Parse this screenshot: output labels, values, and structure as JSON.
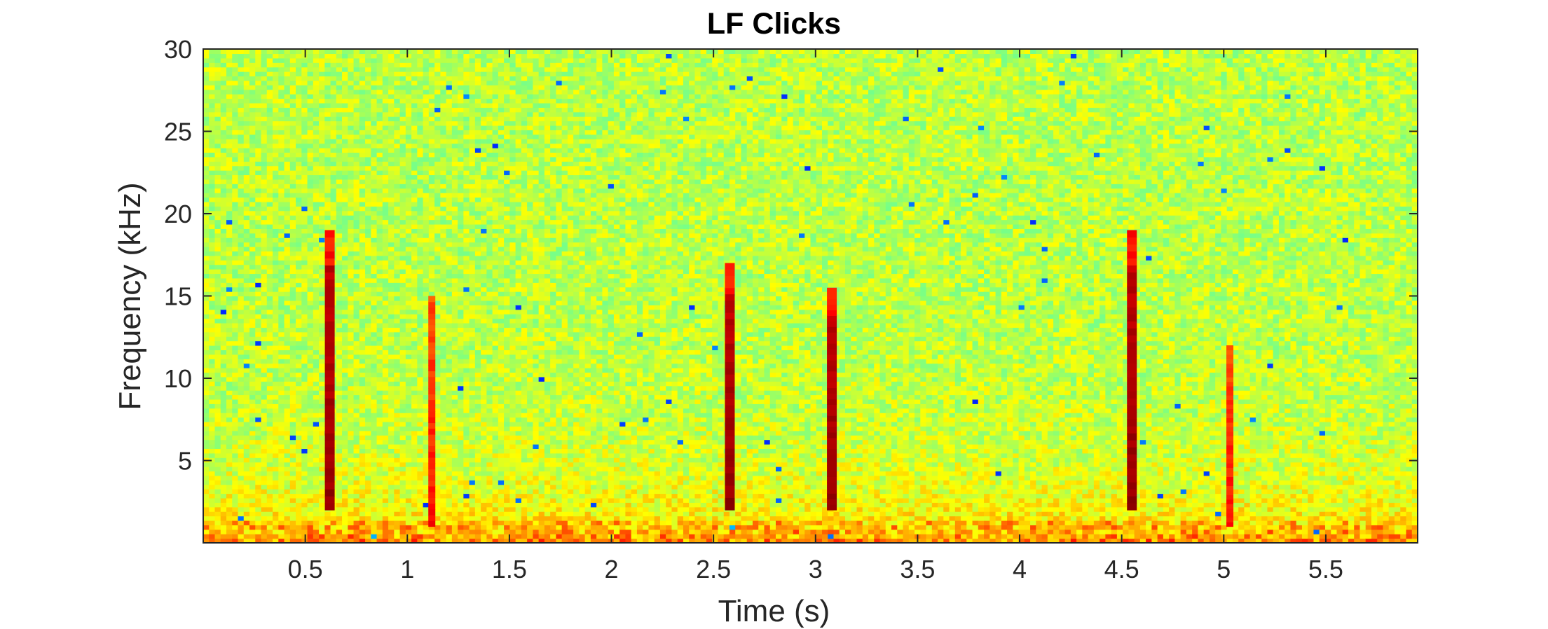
{
  "chart_data": {
    "type": "heatmap",
    "title": "LF Clicks",
    "xlabel": "Time (s)",
    "ylabel": "Frequency (kHz)",
    "xlim": [
      0,
      5.95
    ],
    "ylim": [
      0,
      30
    ],
    "x_ticks": [
      0.5,
      1,
      1.5,
      2,
      2.5,
      3,
      3.5,
      4,
      4.5,
      5,
      5.5
    ],
    "x_tick_labels": [
      "0.5",
      "1",
      "1.5",
      "2",
      "2.5",
      "3",
      "3.5",
      "4",
      "4.5",
      "5",
      "5.5"
    ],
    "y_ticks": [
      5,
      10,
      15,
      20,
      25,
      30
    ],
    "y_tick_labels": [
      "5",
      "10",
      "15",
      "20",
      "25",
      "30"
    ],
    "colormap": "jet",
    "clicks": [
      {
        "time": 0.62,
        "freq_range": [
          2,
          19
        ],
        "strength": "strong"
      },
      {
        "time": 1.12,
        "freq_range": [
          1,
          15
        ],
        "strength": "weak"
      },
      {
        "time": 2.58,
        "freq_range": [
          2,
          17
        ],
        "strength": "strong"
      },
      {
        "time": 3.08,
        "freq_range": [
          2,
          15.5
        ],
        "strength": "strong"
      },
      {
        "time": 4.55,
        "freq_range": [
          2,
          19
        ],
        "strength": "strong"
      },
      {
        "time": 5.03,
        "freq_range": [
          1,
          12
        ],
        "strength": "weak"
      }
    ],
    "grid": false,
    "legend": "none"
  }
}
